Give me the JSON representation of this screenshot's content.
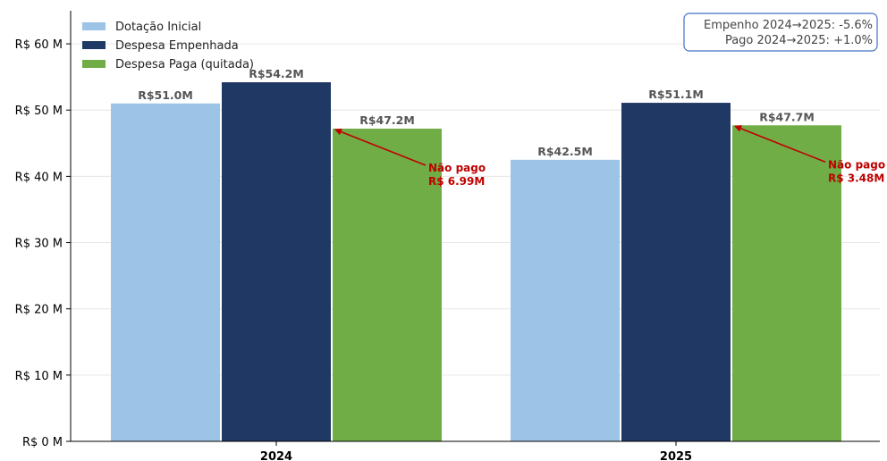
{
  "chart_data": {
    "type": "bar",
    "title": "",
    "xlabel": "",
    "ylabel": "",
    "categories": [
      "2024",
      "2025"
    ],
    "series": [
      {
        "name": "Dotação Inicial",
        "color": "#9dc3e6",
        "values": [
          51.0,
          42.5
        ],
        "labels": [
          "R$51.0M",
          "R$42.5M"
        ]
      },
      {
        "name": "Despesa Empenhada",
        "color": "#1f3864",
        "values": [
          54.2,
          51.1
        ],
        "labels": [
          "R$54.2M",
          "R$51.1M"
        ]
      },
      {
        "name": "Despesa Paga (quitada)",
        "color": "#70ad47",
        "values": [
          47.2,
          47.7
        ],
        "labels": [
          "R$47.2M",
          "R$47.7M"
        ]
      }
    ],
    "ylim": [
      0,
      65
    ],
    "yticks": [
      0,
      10,
      20,
      30,
      40,
      50,
      60
    ],
    "ytick_labels": [
      "R$ 0 M",
      "R$ 10 M",
      "R$ 20 M",
      "R$ 30 M",
      "R$ 40 M",
      "R$ 50 M",
      "R$ 60 M"
    ],
    "grid": "horizontal",
    "legend_position": "top-left",
    "annotations": [
      {
        "category": "2024",
        "line1": "Não pago",
        "line2": "R$ 6.99M",
        "color": "#c00000"
      },
      {
        "category": "2025",
        "line1": "Não pago",
        "line2": "R$ 3.48M",
        "color": "#c00000"
      }
    ],
    "summary_box": {
      "line1": "Empenho 2024→2025: -5.6%",
      "line2": "Pago 2024→2025: +1.0%",
      "position": "top-right",
      "border_color": "#4472c4"
    }
  }
}
